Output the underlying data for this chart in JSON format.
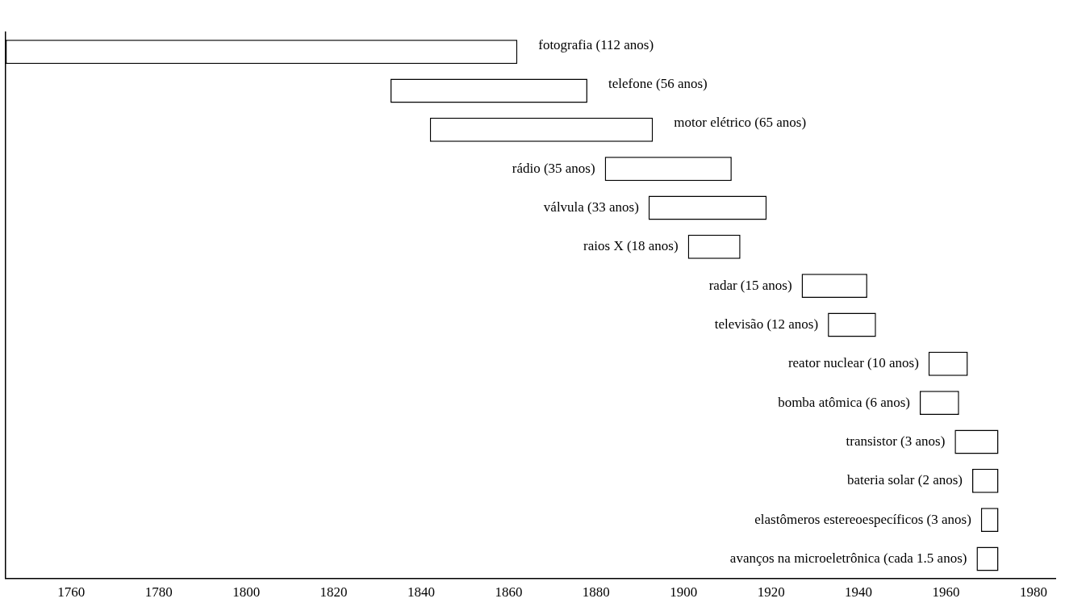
{
  "chart_data": {
    "type": "bar",
    "orientation": "horizontal",
    "categories": [
      "fotografia (112 anos)",
      "telefone (56 anos)",
      "motor elétrico (65 anos)",
      "rádio (35 anos)",
      "válvula (33 anos)",
      "raios X (18 anos)",
      "radar (15 anos)",
      "televisão (12 anos)",
      "reator nuclear (10 anos)",
      "bomba atômica (6 anos)",
      "transistor (3 anos)",
      "bateria solar (2 anos)",
      "elastômeros estereoespecíficos (3 anos)",
      "avanços na microeletrônica (cada 1.5 anos)"
    ],
    "base": [
      1745,
      1833,
      1842,
      1882,
      1892,
      1901,
      1927,
      1933,
      1956,
      1954,
      1962,
      1966,
      1968,
      1967
    ],
    "values": [
      117,
      45,
      51,
      29,
      27,
      12,
      15,
      11,
      9,
      9,
      10,
      6,
      4,
      5
    ],
    "color": "#ffffff",
    "xlim": [
      1745,
      1985
    ],
    "xticks": [
      1760,
      1780,
      1800,
      1820,
      1840,
      1860,
      1880,
      1900,
      1920,
      1940,
      1960,
      1980
    ],
    "tick_labels": "x",
    "grid": false,
    "legend": false
  }
}
